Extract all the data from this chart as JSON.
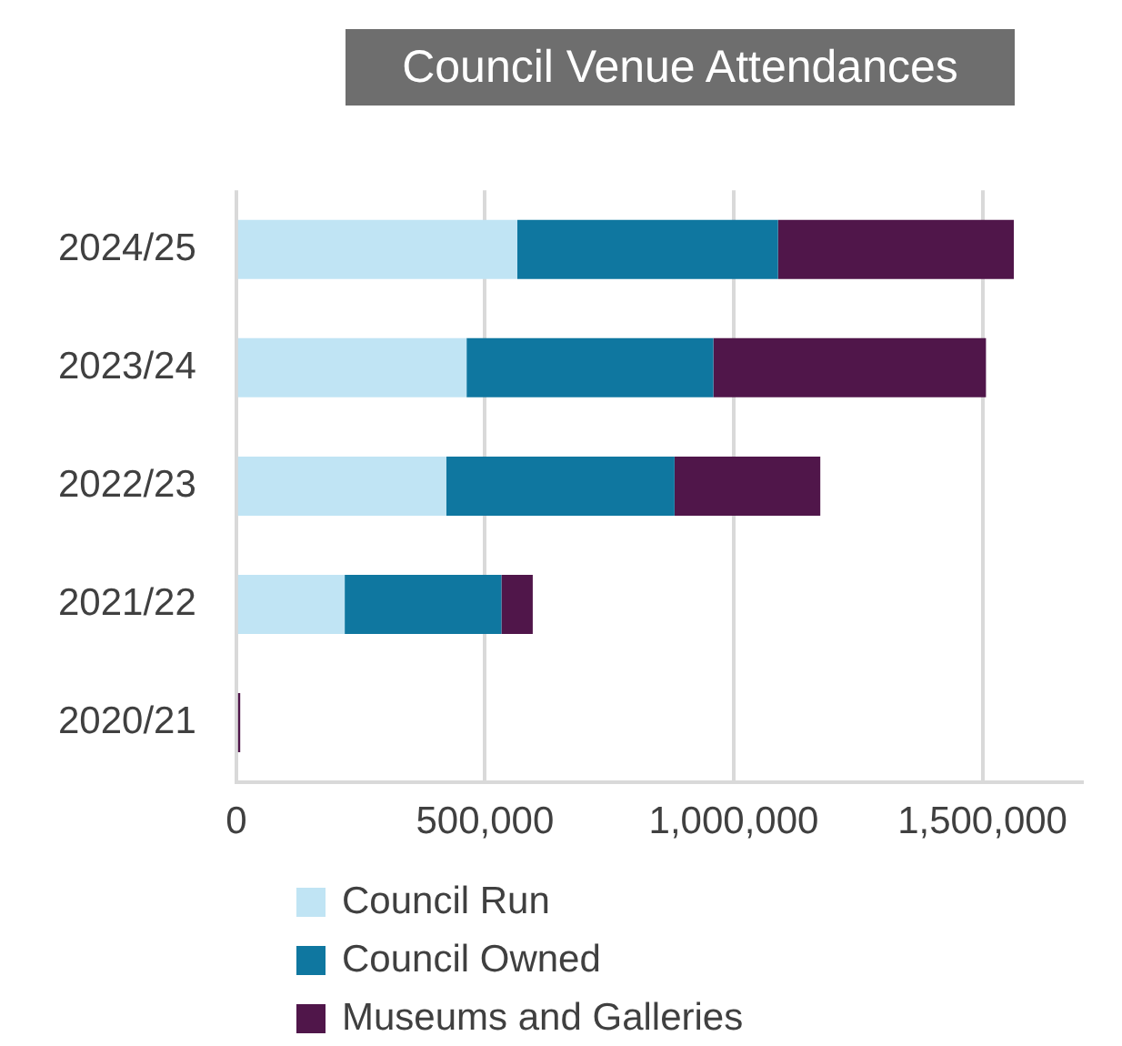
{
  "chart_data": {
    "type": "bar",
    "orientation": "horizontal",
    "stacked": true,
    "title": "Council Venue Attendances",
    "categories": [
      "2024/25",
      "2023/24",
      "2022/23",
      "2021/22",
      "2020/21"
    ],
    "series": [
      {
        "name": "Council Run",
        "color": "#c0e4f4",
        "values": [
          565000,
          463000,
          422000,
          218000,
          0
        ]
      },
      {
        "name": "Council Owned",
        "color": "#0f77a0",
        "values": [
          524000,
          496000,
          459000,
          315000,
          0
        ]
      },
      {
        "name": "Museums and Galleries",
        "color": "#50164a",
        "values": [
          474000,
          548000,
          293000,
          63000,
          8000
        ]
      }
    ],
    "xlim": [
      0,
      1700000
    ],
    "xticks": [
      0,
      {
        "value": 500000,
        "label": "500,000"
      },
      {
        "value": 1000000,
        "label": "1,000,000"
      },
      {
        "value": 1500000,
        "label": "1,500,000"
      }
    ],
    "grid": "x",
    "legend": "bottom"
  }
}
